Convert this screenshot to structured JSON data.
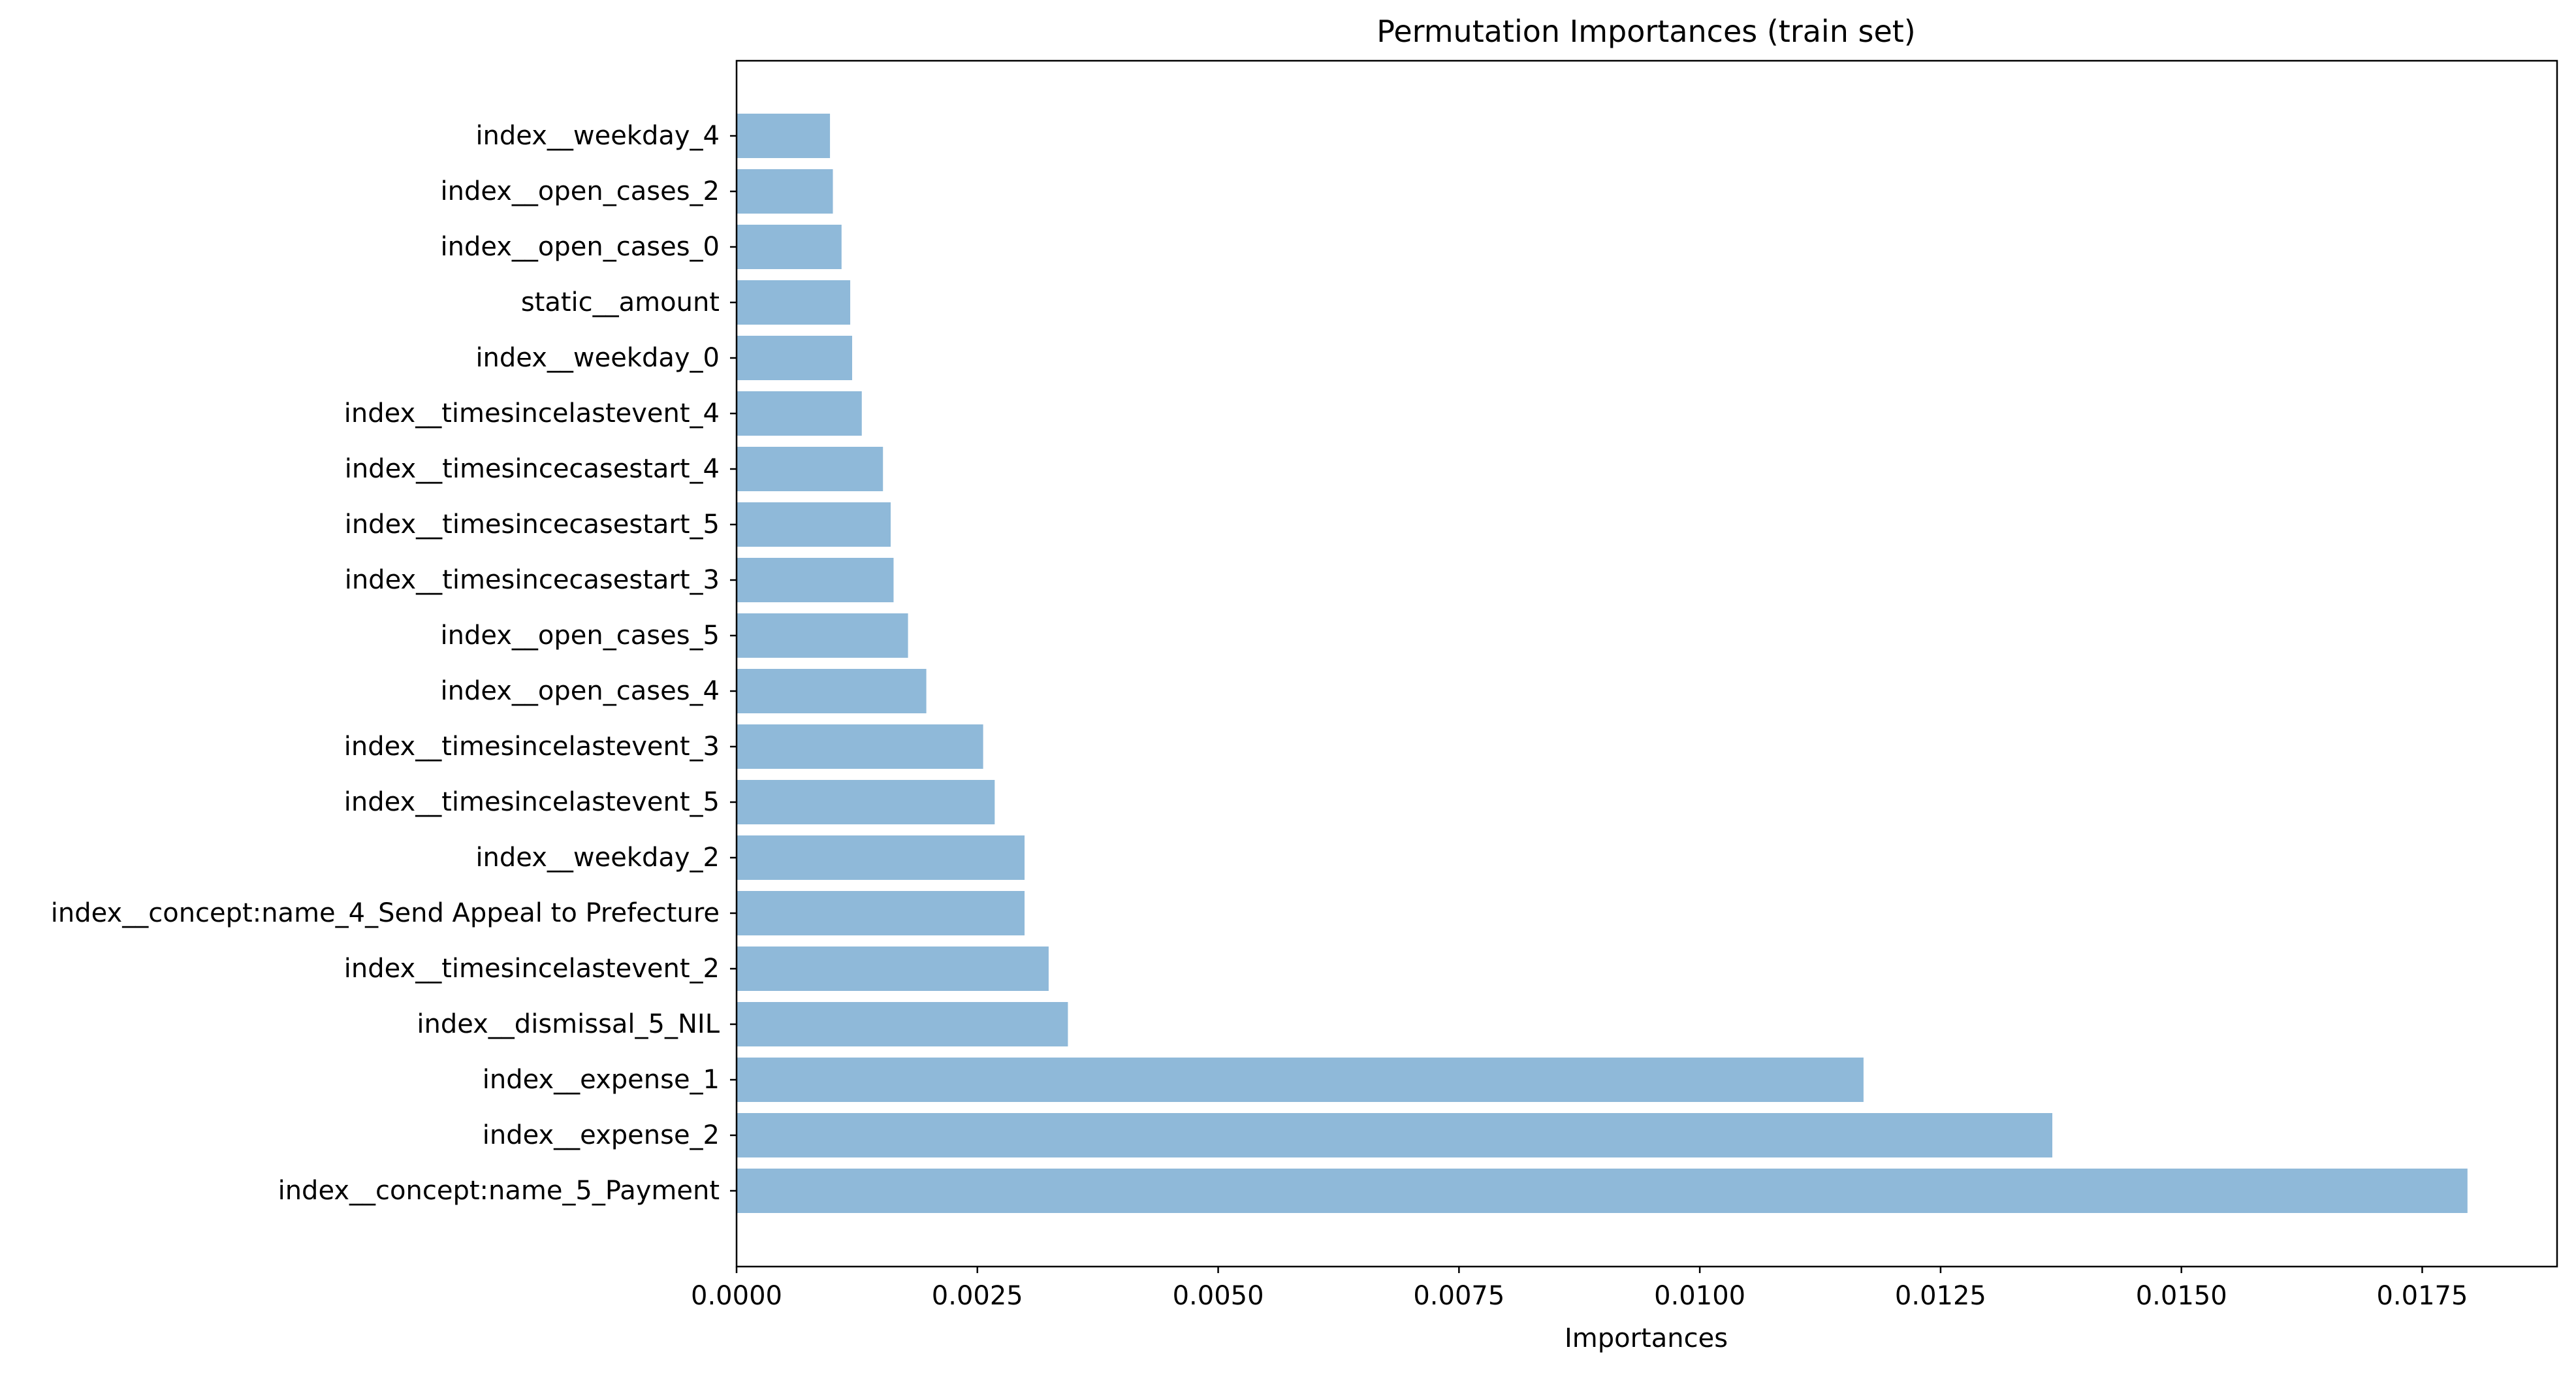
{
  "chart_data": {
    "type": "bar",
    "orientation": "horizontal",
    "title": "Permutation Importances (train set)",
    "xlabel": "Importances",
    "ylabel": "",
    "xlim": [
      0,
      0.0189
    ],
    "xticks": [
      0.0,
      0.0025,
      0.005,
      0.0075,
      0.01,
      0.0125,
      0.015,
      0.0175
    ],
    "xtick_labels": [
      "0.0000",
      "0.0025",
      "0.0050",
      "0.0075",
      "0.0100",
      "0.0125",
      "0.0150",
      "0.0175"
    ],
    "bar_color": "#8fb9d9",
    "grid": false,
    "legend": "none",
    "categories": [
      "index__weekday_4",
      "index__open_cases_2",
      "index__open_cases_0",
      "static__amount",
      "index__weekday_0",
      "index__timesincelastevent_4",
      "index__timesincecasestart_4",
      "index__timesincecasestart_5",
      "index__timesincecasestart_3",
      "index__open_cases_5",
      "index__open_cases_4",
      "index__timesincelastevent_3",
      "index__timesincelastevent_5",
      "index__weekday_2",
      "index__concept:name_4_Send Appeal to Prefecture",
      "index__timesincelastevent_2",
      "index__dismissal_5_NIL",
      "index__expense_1",
      "index__expense_2",
      "index__concept:name_5_Payment"
    ],
    "values": [
      0.00097,
      0.001,
      0.00109,
      0.00118,
      0.0012,
      0.0013,
      0.00152,
      0.0016,
      0.00163,
      0.00178,
      0.00197,
      0.00256,
      0.00268,
      0.00299,
      0.00299,
      0.00324,
      0.00344,
      0.0117,
      0.01366,
      0.01797
    ]
  }
}
